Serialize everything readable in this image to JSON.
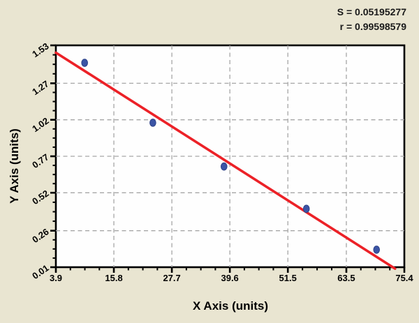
{
  "stats": {
    "s_label": "S = 0.05195277",
    "r_label": "r = 0.99598579"
  },
  "chart_data": {
    "type": "scatter",
    "title": "",
    "xlabel": "X Axis (units)",
    "ylabel": "Y Axis (units)",
    "x_ticks": [
      3.9,
      15.8,
      27.7,
      39.6,
      51.5,
      63.5,
      75.4
    ],
    "y_ticks": [
      0.01,
      0.26,
      0.52,
      0.77,
      1.02,
      1.27,
      1.53
    ],
    "xlim": [
      3.9,
      75.4
    ],
    "ylim": [
      0.01,
      1.53
    ],
    "minor_ticks_between_majors": 3,
    "grid": "dashed gridlines at interior major ticks",
    "legend": "none",
    "points": [
      {
        "x": 9.8,
        "y": 1.41
      },
      {
        "x": 23.8,
        "y": 1.0
      },
      {
        "x": 38.4,
        "y": 0.7
      },
      {
        "x": 55.3,
        "y": 0.41
      },
      {
        "x": 69.7,
        "y": 0.13
      }
    ],
    "fit_line": {
      "x1": 3.9,
      "y1": 1.48,
      "x2": 73.5,
      "y2": 0.0
    },
    "S": 0.05195277,
    "r": 0.99598579,
    "colors": {
      "background": "#e9e5d1",
      "plot_background": "#fefefe",
      "point_fill": "#3b54a5",
      "point_stroke": "#2d4288",
      "line_color": "#ec2127",
      "grid_color": "#a6a6a6",
      "axis_color": "#000000",
      "text_color": "#000000"
    }
  }
}
